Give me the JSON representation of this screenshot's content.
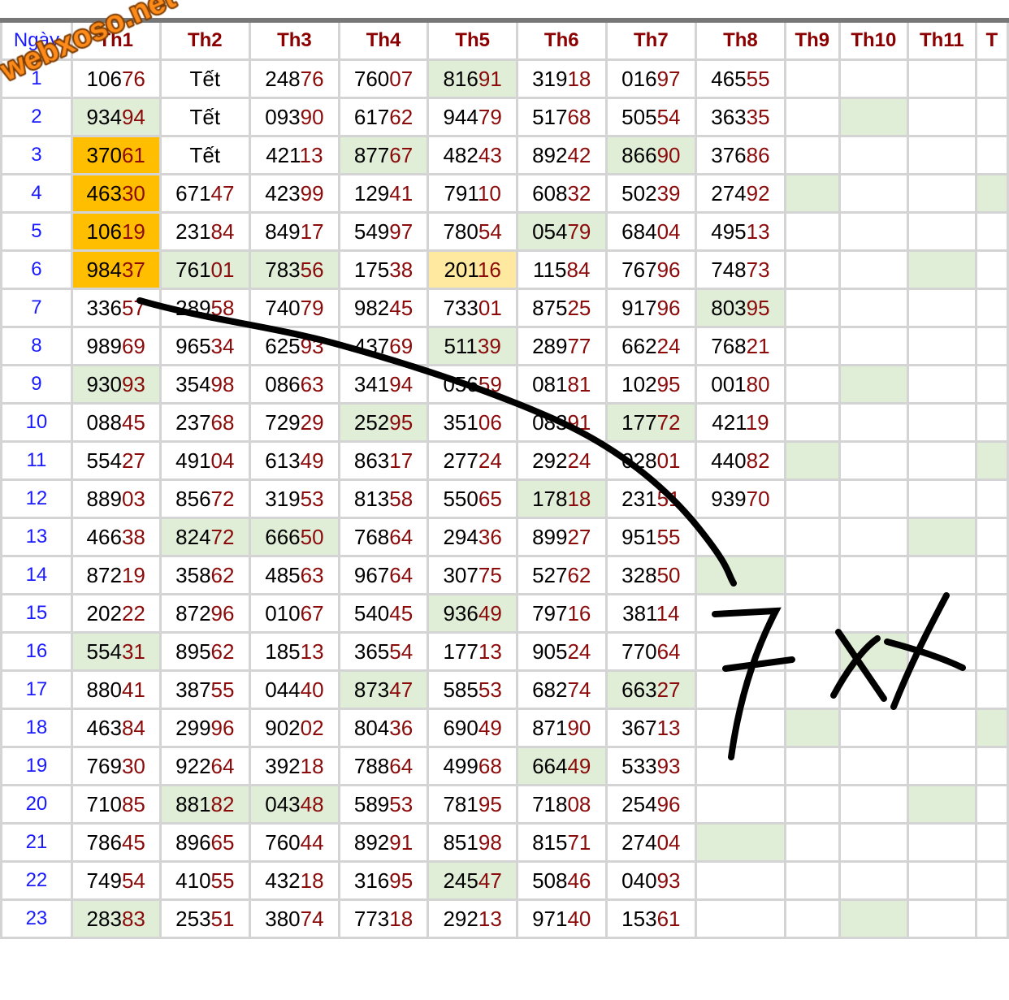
{
  "header": {
    "day_label": "Ngày",
    "months": [
      "Th1",
      "Th2",
      "Th3",
      "Th4",
      "Th5",
      "Th6",
      "Th7",
      "Th8",
      "Th9",
      "Th10",
      "Th11",
      "T"
    ]
  },
  "rows": [
    {
      "day": "1",
      "values": [
        "10676",
        "Tết",
        "24876",
        "76007",
        "81691",
        "31918",
        "01697",
        "46555",
        "",
        "",
        "",
        ""
      ]
    },
    {
      "day": "2",
      "values": [
        "93494",
        "Tết",
        "09390",
        "61762",
        "94479",
        "51768",
        "50554",
        "36335",
        "",
        "",
        "",
        ""
      ]
    },
    {
      "day": "3",
      "values": [
        "37061",
        "Tết",
        "42113",
        "87767",
        "48243",
        "89242",
        "86690",
        "37686",
        "",
        "",
        "",
        ""
      ]
    },
    {
      "day": "4",
      "values": [
        "46330",
        "67147",
        "42399",
        "12941",
        "79110",
        "60832",
        "50239",
        "27492",
        "",
        "",
        "",
        ""
      ]
    },
    {
      "day": "5",
      "values": [
        "10619",
        "23184",
        "84917",
        "54997",
        "78054",
        "05479",
        "68404",
        "49513",
        "",
        "",
        "",
        ""
      ]
    },
    {
      "day": "6",
      "values": [
        "98437",
        "76101",
        "78356",
        "17538",
        "20116",
        "11584",
        "76796",
        "74873",
        "",
        "",
        "",
        ""
      ]
    },
    {
      "day": "7",
      "values": [
        "33657",
        "28958",
        "74079",
        "98245",
        "73301",
        "87525",
        "91796",
        "80395",
        "",
        "",
        "",
        ""
      ]
    },
    {
      "day": "8",
      "values": [
        "98969",
        "96534",
        "62593",
        "43769",
        "51139",
        "28977",
        "66224",
        "76821",
        "",
        "",
        "",
        ""
      ]
    },
    {
      "day": "9",
      "values": [
        "93093",
        "35498",
        "08663",
        "34194",
        "05659",
        "08181",
        "10295",
        "00180",
        "",
        "",
        "",
        ""
      ]
    },
    {
      "day": "10",
      "values": [
        "08845",
        "23768",
        "72929",
        "25295",
        "35106",
        "08391",
        "17772",
        "42119",
        "",
        "",
        "",
        ""
      ]
    },
    {
      "day": "11",
      "values": [
        "55427",
        "49104",
        "61349",
        "86317",
        "27724",
        "29224",
        "02801",
        "44082",
        "",
        "",
        "",
        ""
      ]
    },
    {
      "day": "12",
      "values": [
        "88903",
        "85672",
        "31953",
        "81358",
        "55065",
        "17818",
        "23151",
        "93970",
        "",
        "",
        "",
        ""
      ]
    },
    {
      "day": "13",
      "values": [
        "46638",
        "82472",
        "66650",
        "76864",
        "29436",
        "89927",
        "95155",
        "",
        "",
        "",
        "",
        ""
      ]
    },
    {
      "day": "14",
      "values": [
        "87219",
        "35862",
        "48563",
        "96764",
        "30775",
        "52762",
        "32850",
        "",
        "",
        "",
        "",
        ""
      ]
    },
    {
      "day": "15",
      "values": [
        "20222",
        "87296",
        "01067",
        "54045",
        "93649",
        "79716",
        "38114",
        "",
        "",
        "",
        "",
        ""
      ]
    },
    {
      "day": "16",
      "values": [
        "55431",
        "89562",
        "18513",
        "36554",
        "17713",
        "90524",
        "77064",
        "",
        "",
        "",
        "",
        ""
      ]
    },
    {
      "day": "17",
      "values": [
        "88041",
        "38755",
        "04440",
        "87347",
        "58553",
        "68274",
        "66327",
        "",
        "",
        "",
        "",
        ""
      ]
    },
    {
      "day": "18",
      "values": [
        "46384",
        "29996",
        "90202",
        "80436",
        "69049",
        "87190",
        "36713",
        "",
        "",
        "",
        "",
        ""
      ]
    },
    {
      "day": "19",
      "values": [
        "76930",
        "92264",
        "39218",
        "78864",
        "49968",
        "66449",
        "53393",
        "",
        "",
        "",
        "",
        ""
      ]
    },
    {
      "day": "20",
      "values": [
        "71085",
        "88182",
        "04348",
        "58953",
        "78195",
        "71808",
        "25496",
        "",
        "",
        "",
        "",
        ""
      ]
    },
    {
      "day": "21",
      "values": [
        "78645",
        "89665",
        "76044",
        "89291",
        "85198",
        "81571",
        "27404",
        "",
        "",
        "",
        "",
        ""
      ]
    },
    {
      "day": "22",
      "values": [
        "74954",
        "41055",
        "43218",
        "31695",
        "24547",
        "50846",
        "04093",
        "",
        "",
        "",
        "",
        ""
      ]
    },
    {
      "day": "23",
      "values": [
        "28383",
        "25351",
        "38074",
        "77318",
        "29213",
        "97140",
        "15361",
        "",
        "",
        "",
        "",
        ""
      ]
    }
  ],
  "highlights": [
    {
      "row": 1,
      "col": 5,
      "color": "green"
    },
    {
      "row": 2,
      "col": 1,
      "color": "green"
    },
    {
      "row": 2,
      "col": 10,
      "color": "green"
    },
    {
      "row": 3,
      "col": 1,
      "color": "orange"
    },
    {
      "row": 3,
      "col": 4,
      "color": "green"
    },
    {
      "row": 3,
      "col": 7,
      "color": "green"
    },
    {
      "row": 4,
      "col": 1,
      "color": "orange"
    },
    {
      "row": 4,
      "col": 9,
      "color": "green"
    },
    {
      "row": 4,
      "col": 12,
      "color": "green"
    },
    {
      "row": 5,
      "col": 1,
      "color": "orange"
    },
    {
      "row": 5,
      "col": 6,
      "color": "green"
    },
    {
      "row": 6,
      "col": 1,
      "color": "orange"
    },
    {
      "row": 6,
      "col": 2,
      "color": "green"
    },
    {
      "row": 6,
      "col": 3,
      "color": "green"
    },
    {
      "row": 6,
      "col": 5,
      "color": "yellow"
    },
    {
      "row": 6,
      "col": 11,
      "color": "green"
    },
    {
      "row": 7,
      "col": 8,
      "color": "green"
    },
    {
      "row": 8,
      "col": 5,
      "color": "green"
    },
    {
      "row": 9,
      "col": 1,
      "color": "green"
    },
    {
      "row": 9,
      "col": 10,
      "color": "green"
    },
    {
      "row": 10,
      "col": 4,
      "color": "green"
    },
    {
      "row": 10,
      "col": 7,
      "color": "green"
    },
    {
      "row": 11,
      "col": 9,
      "color": "green"
    },
    {
      "row": 11,
      "col": 12,
      "color": "green"
    },
    {
      "row": 12,
      "col": 6,
      "color": "green"
    },
    {
      "row": 13,
      "col": 2,
      "color": "green"
    },
    {
      "row": 13,
      "col": 3,
      "color": "green"
    },
    {
      "row": 13,
      "col": 11,
      "color": "green"
    },
    {
      "row": 14,
      "col": 8,
      "color": "green"
    },
    {
      "row": 15,
      "col": 5,
      "color": "green"
    },
    {
      "row": 16,
      "col": 1,
      "color": "green"
    },
    {
      "row": 16,
      "col": 10,
      "color": "green"
    },
    {
      "row": 17,
      "col": 4,
      "color": "green"
    },
    {
      "row": 17,
      "col": 7,
      "color": "green"
    },
    {
      "row": 18,
      "col": 9,
      "color": "green"
    },
    {
      "row": 18,
      "col": 12,
      "color": "green"
    },
    {
      "row": 19,
      "col": 6,
      "color": "green"
    },
    {
      "row": 20,
      "col": 2,
      "color": "green"
    },
    {
      "row": 20,
      "col": 3,
      "color": "green"
    },
    {
      "row": 20,
      "col": 11,
      "color": "green"
    },
    {
      "row": 21,
      "col": 8,
      "color": "green"
    },
    {
      "row": 22,
      "col": 5,
      "color": "green"
    },
    {
      "row": 23,
      "col": 1,
      "color": "green"
    },
    {
      "row": 23,
      "col": 10,
      "color": "green"
    }
  ],
  "colors": {
    "green": "#e0eed8",
    "orange": "#ffbf00",
    "yellow": "#ffe8a0",
    "header_text": "#8b0000",
    "day_text": "#1a1aff",
    "last_digits": "#8b0a0a"
  },
  "watermark": "webxoso.net",
  "handwritten_note": "7XX"
}
